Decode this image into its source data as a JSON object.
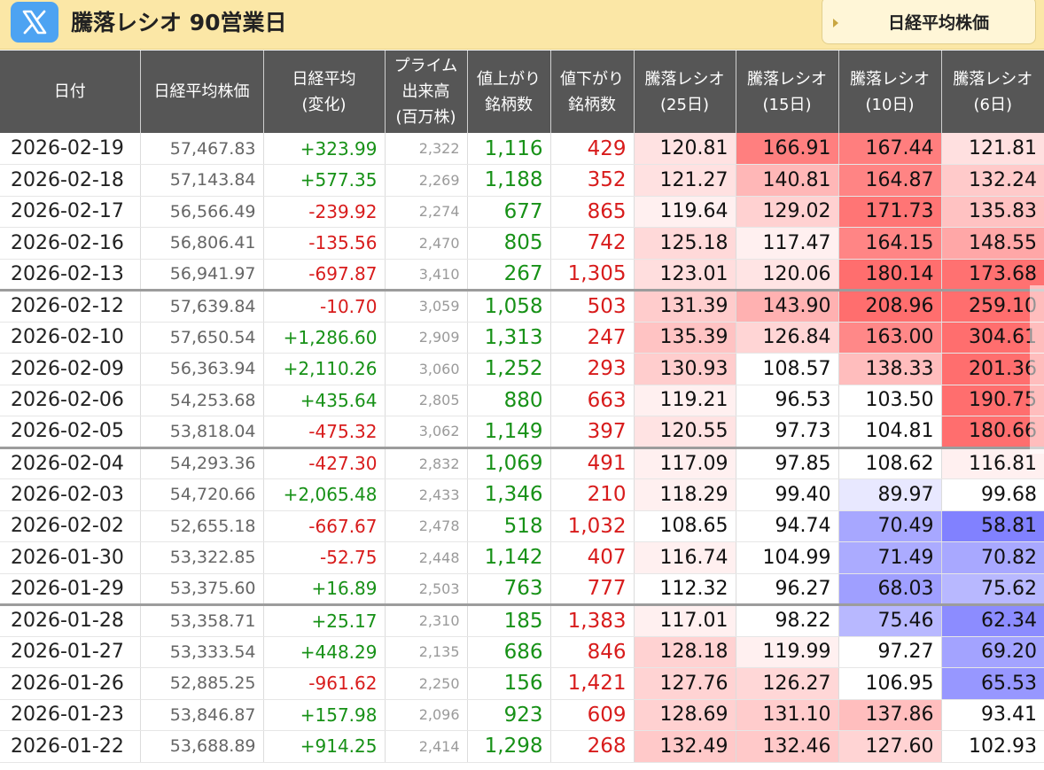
{
  "header": {
    "title": "騰落レシオ 90営業日",
    "right_button": "日経平均株価",
    "x_icon": "x-logo-icon"
  },
  "table": {
    "columns": [
      {
        "lines": [
          "日付"
        ]
      },
      {
        "lines": [
          "日経平均株価"
        ]
      },
      {
        "lines": [
          "日経平均",
          "(変化)"
        ]
      },
      {
        "lines": [
          "プライム",
          "出来高",
          "(百万株)"
        ]
      },
      {
        "lines": [
          "値上がり",
          "銘柄数"
        ]
      },
      {
        "lines": [
          "値下がり",
          "銘柄数"
        ]
      },
      {
        "lines": [
          "騰落レシオ",
          "(25日)"
        ]
      },
      {
        "lines": [
          "騰落レシオ",
          "(15日)"
        ]
      },
      {
        "lines": [
          "騰落レシオ",
          "(10日)"
        ]
      },
      {
        "lines": [
          "騰落レシオ",
          "(6日)"
        ]
      }
    ],
    "rows": [
      {
        "date": "2026-02-19",
        "nikkei": "57,467.83",
        "change": "+323.99",
        "volume": "2,322",
        "advances": "1,116",
        "declines": "429",
        "r25": "120.81",
        "r15": "166.91",
        "r10": "167.44",
        "r6": "121.81"
      },
      {
        "date": "2026-02-18",
        "nikkei": "57,143.84",
        "change": "+577.35",
        "volume": "2,269",
        "advances": "1,188",
        "declines": "352",
        "r25": "121.27",
        "r15": "140.81",
        "r10": "164.87",
        "r6": "132.24"
      },
      {
        "date": "2026-02-17",
        "nikkei": "56,566.49",
        "change": "-239.92",
        "volume": "2,274",
        "advances": "677",
        "declines": "865",
        "r25": "119.64",
        "r15": "129.02",
        "r10": "171.73",
        "r6": "135.83"
      },
      {
        "date": "2026-02-16",
        "nikkei": "56,806.41",
        "change": "-135.56",
        "volume": "2,470",
        "advances": "805",
        "declines": "742",
        "r25": "125.18",
        "r15": "117.47",
        "r10": "164.15",
        "r6": "148.55"
      },
      {
        "date": "2026-02-13",
        "nikkei": "56,941.97",
        "change": "-697.87",
        "volume": "3,410",
        "advances": "267",
        "declines": "1,305",
        "r25": "123.01",
        "r15": "120.06",
        "r10": "180.14",
        "r6": "173.68"
      },
      {
        "date": "2026-02-12",
        "nikkei": "57,639.84",
        "change": "-10.70",
        "volume": "3,059",
        "advances": "1,058",
        "declines": "503",
        "r25": "131.39",
        "r15": "143.90",
        "r10": "208.96",
        "r6": "259.10"
      },
      {
        "date": "2026-02-10",
        "nikkei": "57,650.54",
        "change": "+1,286.60",
        "volume": "2,909",
        "advances": "1,313",
        "declines": "247",
        "r25": "135.39",
        "r15": "126.84",
        "r10": "163.00",
        "r6": "304.61"
      },
      {
        "date": "2026-02-09",
        "nikkei": "56,363.94",
        "change": "+2,110.26",
        "volume": "3,060",
        "advances": "1,252",
        "declines": "293",
        "r25": "130.93",
        "r15": "108.57",
        "r10": "138.33",
        "r6": "201.36"
      },
      {
        "date": "2026-02-06",
        "nikkei": "54,253.68",
        "change": "+435.64",
        "volume": "2,805",
        "advances": "880",
        "declines": "663",
        "r25": "119.21",
        "r15": "96.53",
        "r10": "103.50",
        "r6": "190.75"
      },
      {
        "date": "2026-02-05",
        "nikkei": "53,818.04",
        "change": "-475.32",
        "volume": "3,062",
        "advances": "1,149",
        "declines": "397",
        "r25": "120.55",
        "r15": "97.73",
        "r10": "104.81",
        "r6": "180.66"
      },
      {
        "date": "2026-02-04",
        "nikkei": "54,293.36",
        "change": "-427.30",
        "volume": "2,832",
        "advances": "1,069",
        "declines": "491",
        "r25": "117.09",
        "r15": "97.85",
        "r10": "108.62",
        "r6": "116.81"
      },
      {
        "date": "2026-02-03",
        "nikkei": "54,720.66",
        "change": "+2,065.48",
        "volume": "2,433",
        "advances": "1,346",
        "declines": "210",
        "r25": "118.29",
        "r15": "99.40",
        "r10": "89.97",
        "r6": "99.68"
      },
      {
        "date": "2026-02-02",
        "nikkei": "52,655.18",
        "change": "-667.67",
        "volume": "2,478",
        "advances": "518",
        "declines": "1,032",
        "r25": "108.65",
        "r15": "94.74",
        "r10": "70.49",
        "r6": "58.81"
      },
      {
        "date": "2026-01-30",
        "nikkei": "53,322.85",
        "change": "-52.75",
        "volume": "2,448",
        "advances": "1,142",
        "declines": "407",
        "r25": "116.74",
        "r15": "104.99",
        "r10": "71.49",
        "r6": "70.82"
      },
      {
        "date": "2026-01-29",
        "nikkei": "53,375.60",
        "change": "+16.89",
        "volume": "2,503",
        "advances": "763",
        "declines": "777",
        "r25": "112.32",
        "r15": "96.27",
        "r10": "68.03",
        "r6": "75.62"
      },
      {
        "date": "2026-01-28",
        "nikkei": "53,358.71",
        "change": "+25.17",
        "volume": "2,310",
        "advances": "185",
        "declines": "1,383",
        "r25": "117.01",
        "r15": "98.22",
        "r10": "75.46",
        "r6": "62.34"
      },
      {
        "date": "2026-01-27",
        "nikkei": "53,333.54",
        "change": "+448.29",
        "volume": "2,135",
        "advances": "686",
        "declines": "846",
        "r25": "128.18",
        "r15": "119.99",
        "r10": "97.27",
        "r6": "69.20"
      },
      {
        "date": "2026-01-26",
        "nikkei": "52,885.25",
        "change": "-961.62",
        "volume": "2,250",
        "advances": "156",
        "declines": "1,421",
        "r25": "127.76",
        "r15": "126.27",
        "r10": "106.95",
        "r6": "65.53"
      },
      {
        "date": "2026-01-23",
        "nikkei": "53,846.87",
        "change": "+157.98",
        "volume": "2,096",
        "advances": "923",
        "declines": "609",
        "r25": "128.69",
        "r15": "131.10",
        "r10": "137.86",
        "r6": "93.41"
      },
      {
        "date": "2026-01-22",
        "nikkei": "53,688.89",
        "change": "+914.25",
        "volume": "2,414",
        "advances": "1,298",
        "declines": "268",
        "r25": "132.49",
        "r15": "132.46",
        "r10": "127.60",
        "r6": "102.93"
      }
    ]
  },
  "colors": {
    "header_bar": "#fbe7a6",
    "table_header": "#565656",
    "positive": "#179117",
    "negative": "#d81c1c",
    "overheat": "#ff6b6b",
    "oversold": "#7d7dff"
  }
}
